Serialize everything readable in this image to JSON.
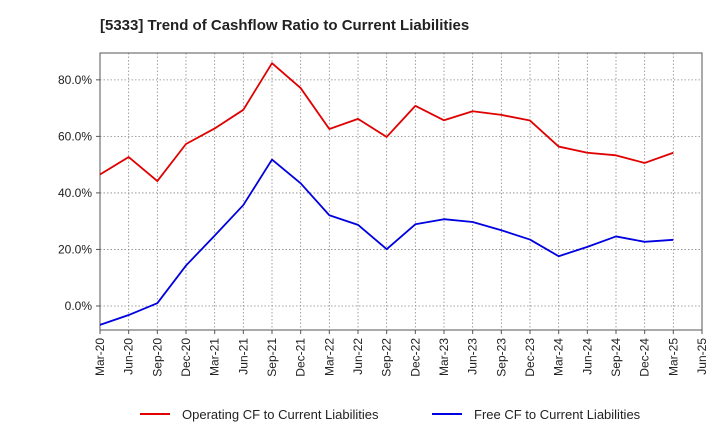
{
  "chart_data": {
    "type": "line",
    "title": "[5333]  Trend of Cashflow Ratio to Current Liabilities",
    "xlabel": "",
    "ylabel": "",
    "x": [
      "Mar-20",
      "Jun-20",
      "Sep-20",
      "Dec-20",
      "Mar-21",
      "Jun-21",
      "Sep-21",
      "Dec-21",
      "Mar-22",
      "Jun-22",
      "Sep-22",
      "Dec-22",
      "Mar-23",
      "Jun-23",
      "Sep-23",
      "Dec-23",
      "Mar-24",
      "Jun-24",
      "Sep-24",
      "Dec-24",
      "Mar-25",
      "Jun-25"
    ],
    "ylim": [
      -8.5,
      89.5
    ],
    "yticks": [
      0,
      20,
      40,
      60,
      80
    ],
    "ytick_labels": [
      "0.0%",
      "20.0%",
      "40.0%",
      "60.0%",
      "80.0%"
    ],
    "grid": true,
    "legend_position": "bottom",
    "series": [
      {
        "name": "Operating CF to Current Liabilities",
        "color": "#e00000",
        "values": [
          46.5,
          52.7,
          44.2,
          57.3,
          62.8,
          69.4,
          85.9,
          77.1,
          62.6,
          66.2,
          59.8,
          70.8,
          65.7,
          68.9,
          67.6,
          65.6,
          56.4,
          54.2,
          53.3,
          50.6,
          54.2,
          null
        ]
      },
      {
        "name": "Free CF to Current Liabilities",
        "color": "#0000e0",
        "values": [
          -6.7,
          -3.2,
          1.0,
          14.3,
          24.9,
          35.7,
          51.8,
          43.4,
          32.1,
          28.7,
          20.1,
          28.9,
          30.7,
          29.7,
          26.8,
          23.5,
          17.6,
          20.9,
          24.6,
          22.7,
          23.4,
          null
        ]
      }
    ]
  }
}
